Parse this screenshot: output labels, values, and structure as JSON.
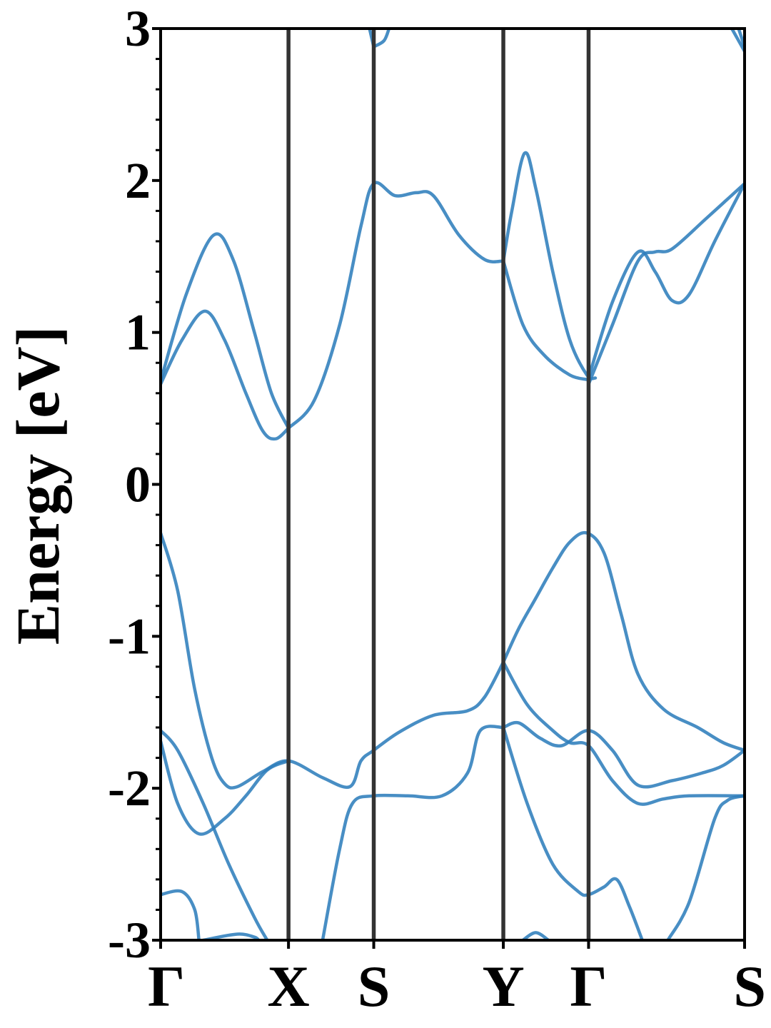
{
  "chart_data": {
    "type": "line",
    "title": "",
    "xlabel": "",
    "ylabel": "Energy [eV]",
    "ylim": [
      -3,
      3
    ],
    "xlim": [
      0,
      6.85
    ],
    "grid": false,
    "legend": "none",
    "line_color": "#2f7ebc",
    "separator_color": "#333333",
    "yticks": [
      -3,
      -2,
      -1,
      0,
      1,
      2,
      3
    ],
    "yminor_step": 0.2,
    "kpoints": [
      {
        "label": "Γ",
        "x": 0.0
      },
      {
        "label": "X",
        "x": 1.5
      },
      {
        "label": "S",
        "x": 2.5
      },
      {
        "label": "Y",
        "x": 4.02
      },
      {
        "label": "Γ",
        "x": 5.02
      },
      {
        "label": "S",
        "x": 6.85
      }
    ],
    "series": [
      {
        "points": [
          [
            0,
            0.66
          ],
          [
            0.25,
            0.95
          ],
          [
            0.52,
            1.14
          ],
          [
            0.75,
            0.95
          ],
          [
            1.0,
            0.6
          ],
          [
            1.2,
            0.35
          ],
          [
            1.35,
            0.3
          ],
          [
            1.5,
            0.37
          ]
        ]
      },
      {
        "points": [
          [
            0,
            0.68
          ],
          [
            0.3,
            1.25
          ],
          [
            0.62,
            1.64
          ],
          [
            0.85,
            1.48
          ],
          [
            1.1,
            1.0
          ],
          [
            1.3,
            0.6
          ],
          [
            1.5,
            0.37
          ]
        ]
      },
      {
        "points": [
          [
            1.5,
            0.37
          ],
          [
            1.8,
            0.55
          ],
          [
            2.1,
            1.05
          ],
          [
            2.35,
            1.7
          ],
          [
            2.5,
            1.98
          ],
          [
            2.75,
            1.9
          ],
          [
            3.0,
            1.92
          ],
          [
            3.2,
            1.9
          ],
          [
            3.5,
            1.64
          ],
          [
            3.8,
            1.48
          ],
          [
            4.02,
            1.47
          ]
        ]
      },
      {
        "points": [
          [
            4.02,
            1.47
          ],
          [
            4.12,
            1.8
          ],
          [
            4.27,
            2.18
          ],
          [
            4.4,
            1.95
          ],
          [
            4.6,
            1.4
          ],
          [
            4.8,
            0.95
          ],
          [
            5.0,
            0.72
          ],
          [
            5.1,
            0.7
          ]
        ]
      },
      {
        "points": [
          [
            4.02,
            1.47
          ],
          [
            4.25,
            1.05
          ],
          [
            4.5,
            0.85
          ],
          [
            4.8,
            0.72
          ],
          [
            5.0,
            0.69
          ]
        ]
      },
      {
        "points": [
          [
            5.02,
            0.66
          ],
          [
            5.3,
            1.05
          ],
          [
            5.6,
            1.47
          ],
          [
            5.8,
            1.53
          ],
          [
            6.0,
            1.55
          ],
          [
            6.4,
            1.75
          ],
          [
            6.85,
            1.98
          ]
        ]
      },
      {
        "points": [
          [
            5.02,
            0.7
          ],
          [
            5.3,
            1.2
          ],
          [
            5.6,
            1.53
          ],
          [
            5.8,
            1.4
          ],
          [
            6.0,
            1.21
          ],
          [
            6.2,
            1.25
          ],
          [
            6.5,
            1.6
          ],
          [
            6.85,
            1.98
          ]
        ]
      },
      {
        "points": [
          [
            2.5,
            2.88
          ],
          [
            2.62,
            2.92
          ],
          [
            2.68,
            3.0
          ]
        ]
      },
      {
        "points": [
          [
            2.45,
            3.0
          ],
          [
            2.5,
            2.88
          ]
        ]
      },
      {
        "points": [
          [
            6.7,
            3.0
          ],
          [
            6.85,
            2.85
          ]
        ]
      },
      {
        "points": [
          [
            6.78,
            3.0
          ],
          [
            6.85,
            2.88
          ]
        ]
      },
      {
        "points": [
          [
            0,
            -0.32
          ],
          [
            0.2,
            -0.7
          ],
          [
            0.4,
            -1.35
          ],
          [
            0.6,
            -1.8
          ],
          [
            0.75,
            -1.97
          ],
          [
            0.9,
            -1.99
          ],
          [
            1.2,
            -1.89
          ],
          [
            1.5,
            -1.82
          ],
          [
            1.9,
            -1.93
          ],
          [
            2.22,
            -1.99
          ],
          [
            2.35,
            -1.82
          ],
          [
            2.5,
            -1.75
          ],
          [
            2.8,
            -1.63
          ],
          [
            3.2,
            -1.52
          ],
          [
            3.6,
            -1.49
          ],
          [
            3.8,
            -1.4
          ],
          [
            4.02,
            -1.17
          ]
        ]
      },
      {
        "points": [
          [
            4.02,
            -1.17
          ],
          [
            4.2,
            -0.95
          ],
          [
            4.4,
            -0.75
          ],
          [
            4.6,
            -0.55
          ],
          [
            4.8,
            -0.38
          ],
          [
            5.0,
            -0.32
          ],
          [
            5.2,
            -0.45
          ],
          [
            5.4,
            -0.85
          ],
          [
            5.6,
            -1.25
          ],
          [
            5.9,
            -1.48
          ],
          [
            6.3,
            -1.6
          ],
          [
            6.6,
            -1.7
          ],
          [
            6.85,
            -1.75
          ]
        ]
      },
      {
        "points": [
          [
            4.02,
            -1.17
          ],
          [
            4.3,
            -1.45
          ],
          [
            4.6,
            -1.62
          ],
          [
            4.8,
            -1.7
          ],
          [
            5.02,
            -1.72
          ],
          [
            5.3,
            -1.95
          ],
          [
            5.6,
            -2.1
          ],
          [
            5.9,
            -2.07
          ],
          [
            6.2,
            -2.05
          ],
          [
            6.85,
            -2.05
          ]
        ]
      },
      {
        "points": [
          [
            0,
            -1.62
          ],
          [
            0.2,
            -1.75
          ],
          [
            0.5,
            -2.1
          ],
          [
            0.8,
            -2.5
          ],
          [
            1.1,
            -2.85
          ],
          [
            1.25,
            -3.0
          ]
        ]
      },
      {
        "points": [
          [
            0,
            -1.69
          ],
          [
            0.2,
            -2.1
          ],
          [
            0.45,
            -2.3
          ],
          [
            0.75,
            -2.2
          ],
          [
            1.0,
            -2.05
          ],
          [
            1.25,
            -1.88
          ],
          [
            1.5,
            -1.82
          ]
        ]
      },
      {
        "points": [
          [
            1.9,
            -3.0
          ],
          [
            2.1,
            -2.4
          ],
          [
            2.25,
            -2.1
          ],
          [
            2.5,
            -2.05
          ],
          [
            2.9,
            -2.05
          ],
          [
            3.3,
            -2.05
          ],
          [
            3.6,
            -1.9
          ],
          [
            3.75,
            -1.62
          ],
          [
            4.02,
            -1.6
          ]
        ]
      },
      {
        "points": [
          [
            4.02,
            -1.6
          ],
          [
            4.2,
            -1.57
          ],
          [
            4.45,
            -1.67
          ],
          [
            4.7,
            -1.72
          ],
          [
            5.02,
            -1.62
          ],
          [
            5.3,
            -1.75
          ],
          [
            5.6,
            -1.98
          ],
          [
            6.0,
            -1.95
          ],
          [
            6.35,
            -1.9
          ],
          [
            6.6,
            -1.85
          ],
          [
            6.85,
            -1.75
          ]
        ]
      },
      {
        "points": [
          [
            4.02,
            -1.6
          ],
          [
            4.3,
            -2.1
          ],
          [
            4.6,
            -2.5
          ],
          [
            4.9,
            -2.68
          ],
          [
            5.02,
            -2.7
          ],
          [
            5.2,
            -2.65
          ],
          [
            5.35,
            -2.6
          ],
          [
            5.5,
            -2.78
          ],
          [
            5.65,
            -3.0
          ]
        ]
      },
      {
        "points": [
          [
            5.95,
            -3.0
          ],
          [
            6.2,
            -2.75
          ],
          [
            6.5,
            -2.2
          ],
          [
            6.65,
            -2.08
          ],
          [
            6.85,
            -2.05
          ]
        ]
      },
      {
        "points": [
          [
            0,
            -2.7
          ],
          [
            0.25,
            -2.68
          ],
          [
            0.4,
            -2.8
          ],
          [
            0.45,
            -3.0
          ]
        ]
      },
      {
        "points": [
          [
            0.5,
            -3.0
          ],
          [
            0.9,
            -2.96
          ],
          [
            1.1,
            -2.98
          ],
          [
            1.15,
            -3.0
          ]
        ]
      },
      {
        "points": [
          [
            4.25,
            -3.0
          ],
          [
            4.4,
            -2.95
          ],
          [
            4.55,
            -3.0
          ]
        ]
      }
    ]
  }
}
